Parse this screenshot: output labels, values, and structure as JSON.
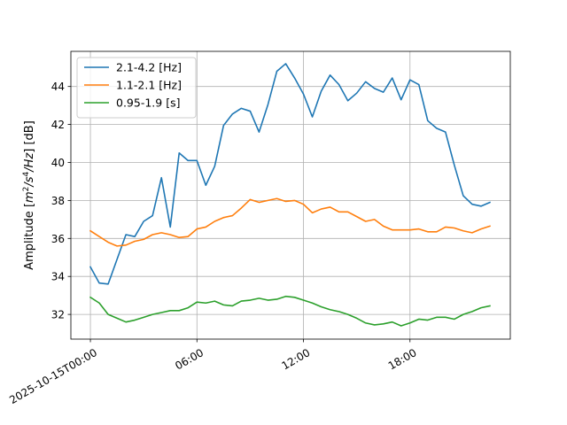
{
  "chart_data": {
    "type": "line",
    "ylabel": "Amplitude [m²/s⁴/Hz] [dB]",
    "ylabel_parts": {
      "pre": "Amplitude [",
      "m": "m",
      "sup2": "2",
      "slash1": "/s",
      "sup4": "4",
      "slash2": "/Hz",
      "post": "] [dB]"
    },
    "x_hours": [
      0,
      0.5,
      1,
      1.5,
      2,
      2.5,
      3,
      3.5,
      4,
      4.5,
      5,
      5.5,
      6,
      6.5,
      7,
      7.5,
      8,
      8.5,
      9,
      9.5,
      10,
      10.5,
      11,
      11.5,
      12,
      12.5,
      13,
      13.5,
      14,
      14.5,
      15,
      15.5,
      16,
      16.5,
      17,
      17.5,
      18,
      18.5,
      19,
      19.5,
      20,
      20.5,
      21,
      21.5,
      22,
      22.5
    ],
    "xlim_hours": [
      -1.1,
      23.65
    ],
    "ylim": [
      30.7,
      45.85
    ],
    "x_ticks": [
      {
        "hour": 0,
        "label": "2025-10-15T00:00"
      },
      {
        "hour": 6,
        "label": "06:00"
      },
      {
        "hour": 12,
        "label": "12:00"
      },
      {
        "hour": 18,
        "label": "18:00"
      }
    ],
    "y_ticks": [
      32,
      34,
      36,
      38,
      40,
      42,
      44
    ],
    "grid": true,
    "legend_position": "upper-left",
    "series": [
      {
        "name": "2.1-4.2 [Hz]",
        "color": "#1f77b4",
        "values": [
          34.5,
          33.65,
          33.6,
          34.9,
          36.2,
          36.1,
          36.9,
          37.2,
          39.2,
          36.6,
          40.5,
          40.1,
          40.1,
          38.8,
          39.8,
          41.95,
          42.55,
          42.85,
          42.7,
          41.6,
          43.05,
          44.8,
          45.2,
          44.45,
          43.6,
          42.4,
          43.75,
          44.6,
          44.1,
          43.25,
          43.65,
          44.25,
          43.9,
          43.7,
          44.45,
          43.3,
          44.35,
          44.1,
          42.2,
          41.8,
          41.6,
          39.85,
          38.25,
          37.8,
          37.7,
          37.9
        ]
      },
      {
        "name": "1.1-2.1 [Hz]",
        "color": "#ff7f0e",
        "values": [
          36.4,
          36.1,
          35.8,
          35.6,
          35.65,
          35.85,
          35.95,
          36.2,
          36.3,
          36.2,
          36.05,
          36.1,
          36.5,
          36.6,
          36.9,
          37.1,
          37.2,
          37.6,
          38.05,
          37.9,
          38.0,
          38.1,
          37.95,
          38.0,
          37.8,
          37.35,
          37.55,
          37.65,
          37.4,
          37.4,
          37.15,
          36.9,
          37.0,
          36.65,
          36.45,
          36.45,
          36.45,
          36.5,
          36.35,
          36.35,
          36.6,
          36.55,
          36.4,
          36.3,
          36.5,
          36.65
        ]
      },
      {
        "name": "0.95-1.9 [s]",
        "color": "#2ca02c",
        "values": [
          32.9,
          32.6,
          32.0,
          31.8,
          31.6,
          31.7,
          31.85,
          32.0,
          32.1,
          32.2,
          32.2,
          32.35,
          32.65,
          32.6,
          32.7,
          32.5,
          32.45,
          32.7,
          32.75,
          32.85,
          32.75,
          32.8,
          32.95,
          32.9,
          32.75,
          32.6,
          32.4,
          32.25,
          32.15,
          32.0,
          31.8,
          31.55,
          31.45,
          31.5,
          31.6,
          31.4,
          31.55,
          31.75,
          31.7,
          31.85,
          31.85,
          31.75,
          32.0,
          32.15,
          32.35,
          32.45
        ]
      }
    ]
  }
}
